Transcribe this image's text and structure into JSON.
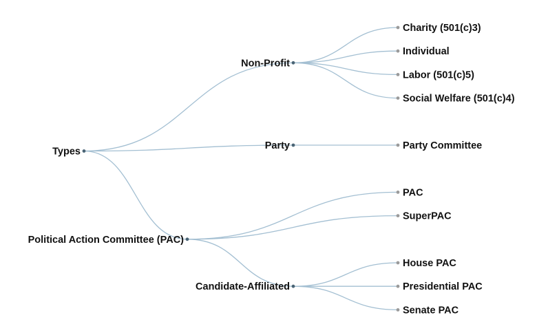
{
  "tree": {
    "root": {
      "label": "Types",
      "children": [
        {
          "label": "Non-Profit",
          "children": [
            {
              "label": "Charity (501(c)3)"
            },
            {
              "label": "Individual"
            },
            {
              "label": "Labor (501(c)5)"
            },
            {
              "label": "Social Welfare (501(c)4)"
            }
          ]
        },
        {
          "label": "Party",
          "children": [
            {
              "label": "Party Committee"
            }
          ]
        },
        {
          "label": "Political Action Committee (PAC)",
          "children": [
            {
              "label": "PAC"
            },
            {
              "label": "SuperPAC"
            },
            {
              "label": "Candidate-Affiliated",
              "children": [
                {
                  "label": "House PAC"
                },
                {
                  "label": "Presidential PAC"
                },
                {
                  "label": "Senate PAC"
                }
              ]
            }
          ]
        }
      ]
    },
    "colors": {
      "link": "#a3bfd2",
      "internal_node": "#4a6475",
      "leaf_node": "#9a9a9a",
      "label": "#111111"
    }
  }
}
